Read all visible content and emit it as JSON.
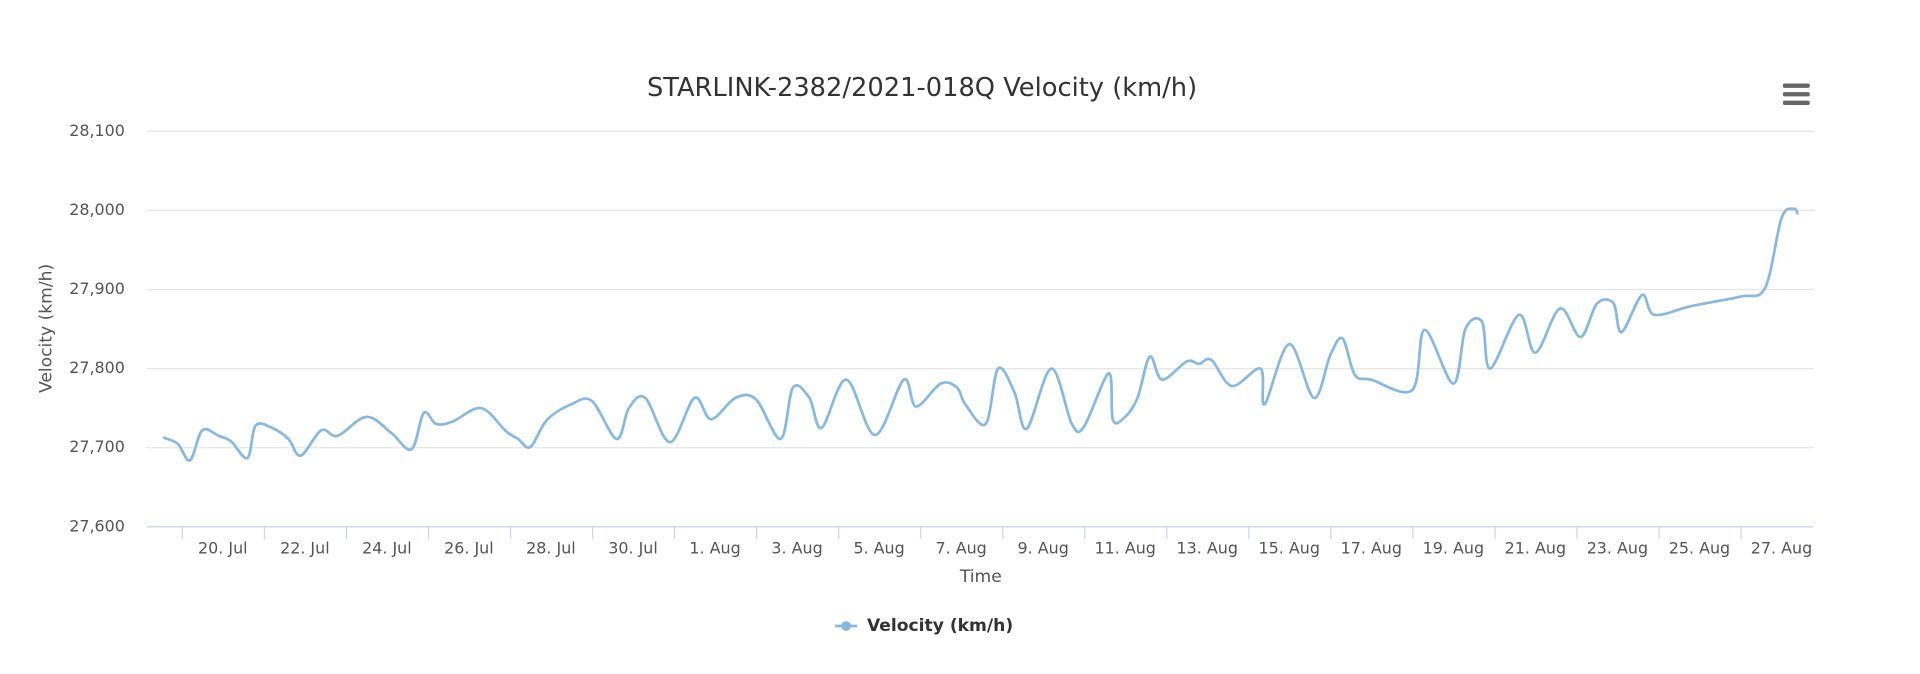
{
  "chart_data": {
    "type": "line",
    "title": "STARLINK-2382/2021-018Q Velocity (km/h)",
    "x_label": "Time",
    "y_label": "Velocity (km/h)",
    "xlim": [
      18.15,
      58.78
    ],
    "ylim": [
      27600,
      28100
    ],
    "xticks": [
      {
        "value": 20,
        "label": "20. Jul"
      },
      {
        "value": 22,
        "label": "22. Jul"
      },
      {
        "value": 24,
        "label": "24. Jul"
      },
      {
        "value": 26,
        "label": "26. Jul"
      },
      {
        "value": 28,
        "label": "28. Jul"
      },
      {
        "value": 30,
        "label": "30. Jul"
      },
      {
        "value": 32,
        "label": "1. Aug"
      },
      {
        "value": 34,
        "label": "3. Aug"
      },
      {
        "value": 36,
        "label": "5. Aug"
      },
      {
        "value": 38,
        "label": "7. Aug"
      },
      {
        "value": 40,
        "label": "9. Aug"
      },
      {
        "value": 42,
        "label": "11. Aug"
      },
      {
        "value": 44,
        "label": "13. Aug"
      },
      {
        "value": 46,
        "label": "15. Aug"
      },
      {
        "value": 48,
        "label": "17. Aug"
      },
      {
        "value": 50,
        "label": "19. Aug"
      },
      {
        "value": 52,
        "label": "21. Aug"
      },
      {
        "value": 54,
        "label": "23. Aug"
      },
      {
        "value": 56,
        "label": "25. Aug"
      },
      {
        "value": 58,
        "label": "27. Aug"
      }
    ],
    "yticks": [
      {
        "value": 27600,
        "label": "27,600"
      },
      {
        "value": 27700,
        "label": "27,700"
      },
      {
        "value": 27800,
        "label": "27,800"
      },
      {
        "value": 27900,
        "label": "27,900"
      },
      {
        "value": 28000,
        "label": "28,000"
      },
      {
        "value": 28100,
        "label": "28,100"
      }
    ],
    "grid": true,
    "legend": "bottom",
    "series": [
      {
        "name": "Velocity (km/h)",
        "color": "#86b8e0",
        "x": [
          18.54,
          18.9,
          19.2,
          19.5,
          19.9,
          20.2,
          20.6,
          20.8,
          21.2,
          21.6,
          21.9,
          22.4,
          22.8,
          23.5,
          24.1,
          24.6,
          24.9,
          25.2,
          25.6,
          26.3,
          26.9,
          27.2,
          27.5,
          27.9,
          28.5,
          29.0,
          29.6,
          29.9,
          30.3,
          30.9,
          31.5,
          31.9,
          32.5,
          33.0,
          33.6,
          33.9,
          34.3,
          34.6,
          35.2,
          35.9,
          36.6,
          36.9,
          37.5,
          37.9,
          38.1,
          38.6,
          38.9,
          39.3,
          39.6,
          40.2,
          40.7,
          41.0,
          41.6,
          41.7,
          42.0,
          42.3,
          42.6,
          42.9,
          43.5,
          43.8,
          44.1,
          44.6,
          45.3,
          45.4,
          46.0,
          46.6,
          47.0,
          47.3,
          47.6,
          48.0,
          49.0,
          49.3,
          50.0,
          50.3,
          50.7,
          50.9,
          51.6,
          52.0,
          52.6,
          53.1,
          53.5,
          53.9,
          54.1,
          54.6,
          54.9,
          55.8,
          57.0,
          57.6,
          58.0,
          58.3,
          58.4
        ],
        "values": [
          27713,
          27705,
          27684,
          27722,
          27715,
          27708,
          27687,
          27728,
          27725,
          27711,
          27690,
          27722,
          27715,
          27739,
          27719,
          27698,
          27744,
          27730,
          27733,
          27750,
          27721,
          27711,
          27701,
          27735,
          27755,
          27759,
          27711,
          27750,
          27763,
          27707,
          27763,
          27736,
          27763,
          27761,
          27711,
          27776,
          27763,
          27725,
          27786,
          27716,
          27786,
          27752,
          27781,
          27776,
          27755,
          27730,
          27800,
          27770,
          27724,
          27800,
          27730,
          27727,
          27794,
          27735,
          27739,
          27763,
          27815,
          27786,
          27809,
          27806,
          27811,
          27778,
          27800,
          27755,
          27831,
          27763,
          27817,
          27838,
          27792,
          27786,
          27773,
          27849,
          27781,
          27851,
          27859,
          27800,
          27868,
          27820,
          27876,
          27840,
          27882,
          27883,
          27846,
          27893,
          27868,
          27879,
          27891,
          27902,
          27990,
          28002,
          27995
        ]
      }
    ]
  }
}
